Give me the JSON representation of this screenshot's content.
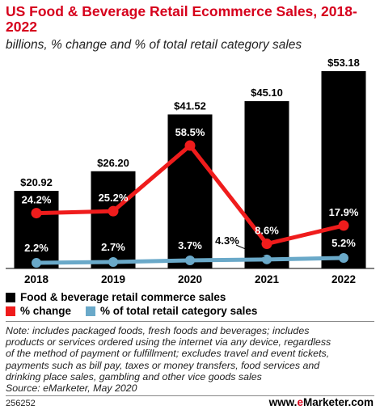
{
  "header": {
    "title": "US Food & Beverage Retail Ecommerce Sales, 2018-2022",
    "subtitle": "billions, % change and % of total retail category sales"
  },
  "legend": {
    "bar_label": "Food & beverage retail commerce sales",
    "change_label": "% change",
    "share_label": "% of total retail category sales"
  },
  "colors": {
    "bars": "#000000",
    "change": "#ef1c1c",
    "share": "#6aa9c9",
    "title": "#d6001c"
  },
  "chart_data": {
    "type": "bar",
    "categories": [
      "2018",
      "2019",
      "2020",
      "2021",
      "2022"
    ],
    "series": [
      {
        "name": "Food & beverage retail commerce sales",
        "type": "bar",
        "values": [
          20.92,
          26.2,
          41.52,
          45.1,
          53.18
        ],
        "labels": [
          "$20.92",
          "$26.20",
          "$41.52",
          "$45.10",
          "$53.18"
        ]
      },
      {
        "name": "% change",
        "type": "line",
        "values": [
          24.2,
          25.2,
          58.5,
          8.6,
          17.9
        ],
        "labels": [
          "24.2%",
          "25.2%",
          "58.5%",
          "8.6%",
          "17.9%"
        ]
      },
      {
        "name": "% of total retail category sales",
        "type": "line",
        "values": [
          2.2,
          2.7,
          3.7,
          4.3,
          5.2
        ],
        "labels": [
          "2.2%",
          "2.7%",
          "3.7%",
          "4.3%",
          "5.2%"
        ]
      }
    ],
    "title": "US Food & Beverage Retail Ecommerce Sales, 2018-2022",
    "legend_position": "bottom",
    "grid": false
  },
  "notes": {
    "lines": [
      "Note: includes packaged foods, fresh foods and beverages; includes",
      "products or services ordered using the internet via any device, regardless",
      "of the method of payment or fulfillment; excludes travel and event tickets,",
      "payments such as bill pay, taxes or money transfers, food services and",
      "drinking place sales, gambling and other vice goods sales",
      "Source: eMarketer, May 2020"
    ]
  },
  "footer": {
    "chart_id": "256252",
    "brand_prefix": "www.",
    "brand_accent": "e",
    "brand_suffix": "Marketer.com"
  }
}
